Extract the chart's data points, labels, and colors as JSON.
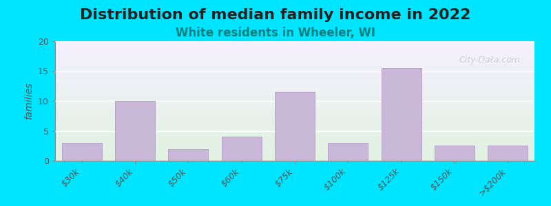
{
  "title": "Distribution of median family income in 2022",
  "subtitle": "White residents in Wheeler, WI",
  "categories": [
    "$30k",
    "$40k",
    "$50k",
    "$60k",
    "$75k",
    "$100k",
    "$125k",
    "$150k",
    ">$200k"
  ],
  "values": [
    3,
    10,
    2,
    4,
    11.5,
    3,
    15.5,
    2.5,
    2.5
  ],
  "bar_color": "#c9b8d8",
  "bar_edge_color": "#b8a0cc",
  "ylim": [
    0,
    20
  ],
  "yticks": [
    0,
    5,
    10,
    15,
    20
  ],
  "ylabel": "families",
  "background_top": "#e8f5e0",
  "background_bottom": "#f5f0ff",
  "outer_bg": "#00e5ff",
  "title_fontsize": 16,
  "subtitle_fontsize": 12,
  "subtitle_color": "#008080",
  "watermark": "City-Data.com",
  "watermark_color": "#c0c0c0"
}
